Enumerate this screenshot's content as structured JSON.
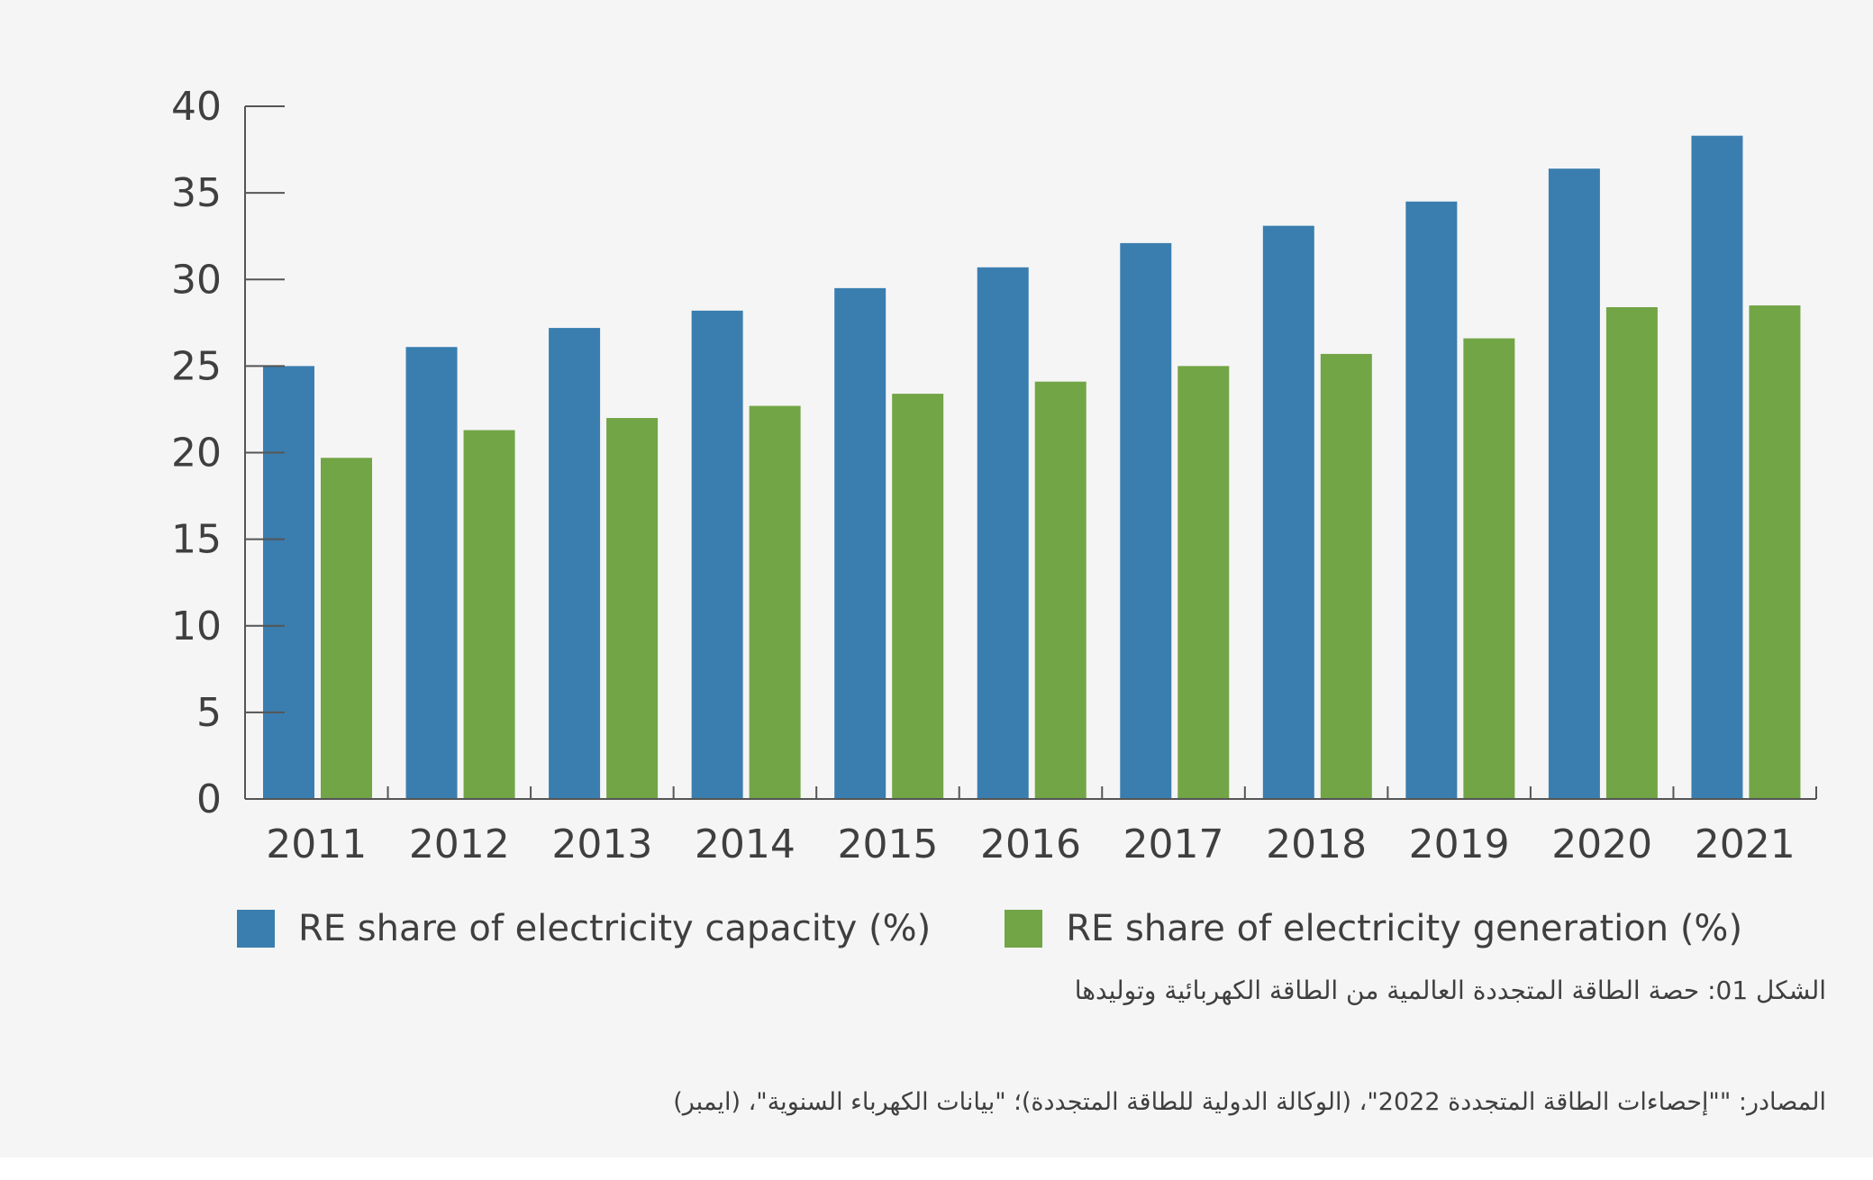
{
  "chart_data": {
    "type": "bar",
    "categories": [
      "2011",
      "2012",
      "2013",
      "2014",
      "2015",
      "2016",
      "2017",
      "2018",
      "2019",
      "2020",
      "2021"
    ],
    "series": [
      {
        "name": "RE share of electricity capacity (%)",
        "color": "#3a7eb0",
        "values": [
          25.0,
          26.1,
          27.2,
          28.2,
          29.5,
          30.7,
          32.1,
          33.1,
          34.5,
          36.4,
          38.3
        ]
      },
      {
        "name": "RE share of electricity generation (%)",
        "color": "#72a546",
        "values": [
          19.7,
          21.3,
          22.0,
          22.7,
          23.4,
          24.1,
          25.0,
          25.7,
          26.6,
          28.4,
          28.5
        ]
      }
    ],
    "yticks": [
      "0",
      "5",
      "10",
      "15",
      "20",
      "25",
      "30",
      "35",
      "40"
    ],
    "ylim": [
      0,
      40
    ],
    "grid": false,
    "legend_position": "bottom"
  },
  "caption": {
    "title": "الشكل 01: حصة الطاقة المتجددة العالمية من الطاقة الكهربائية وتوليدها",
    "source": "المصادر: \"\"إحصاءات الطاقة المتجددة 2022\"، (الوكالة الدولية للطاقة المتجددة)؛ \"بيانات الكهرباء السنوية\"، (ايمبر)"
  }
}
